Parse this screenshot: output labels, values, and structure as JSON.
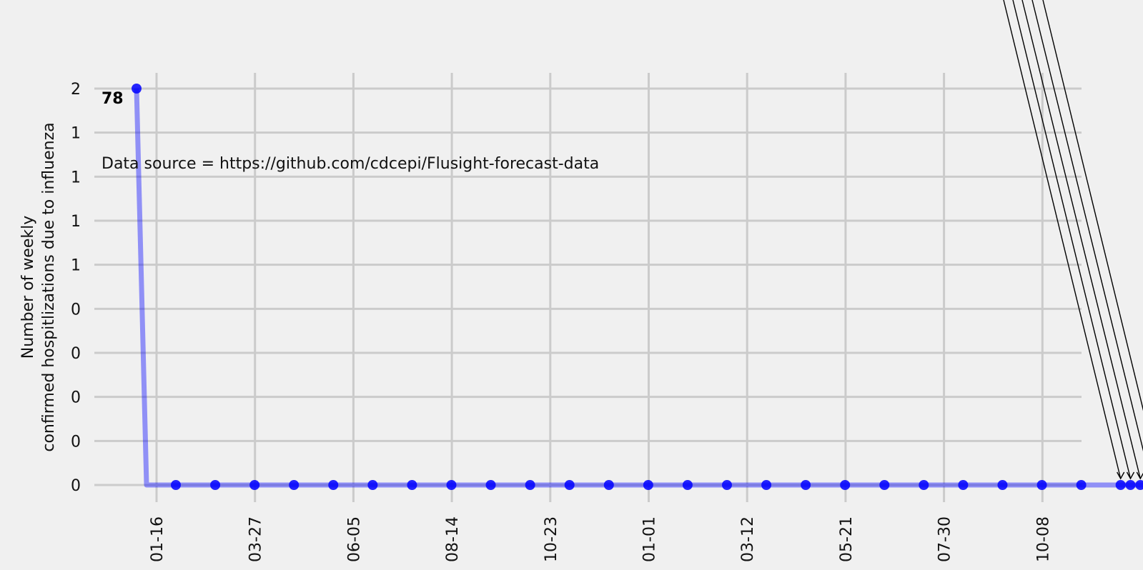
{
  "chart_data": {
    "type": "line",
    "title": "",
    "xlabel": "",
    "ylabel_lines": [
      "Number of weekly",
      "confirmed hospitlizations due to influenza"
    ],
    "x_tick_labels": [
      "01-16",
      "03-27",
      "06-05",
      "08-14",
      "10-23",
      "01-01",
      "03-12",
      "05-21",
      "07-30",
      "10-08"
    ],
    "y_tick_labels": [
      "0",
      "0",
      "0",
      "0",
      "0",
      "1",
      "1",
      "1",
      "1",
      "2"
    ],
    "ylim": [
      0,
      2
    ],
    "grid": true,
    "line_color": "#0000ff",
    "annotation_first": "78",
    "note": "Data source = https://github.com/cdcepi/Flusight-forecast-data",
    "series": [
      {
        "values": [
          2,
          0,
          0,
          0,
          0,
          0,
          0,
          0,
          0,
          0,
          0,
          0,
          0,
          0,
          0,
          0,
          0,
          0,
          0,
          0,
          0,
          0,
          0,
          0,
          0,
          0,
          0,
          0,
          0,
          0
        ]
      }
    ],
    "forecast_arrows": 5
  }
}
